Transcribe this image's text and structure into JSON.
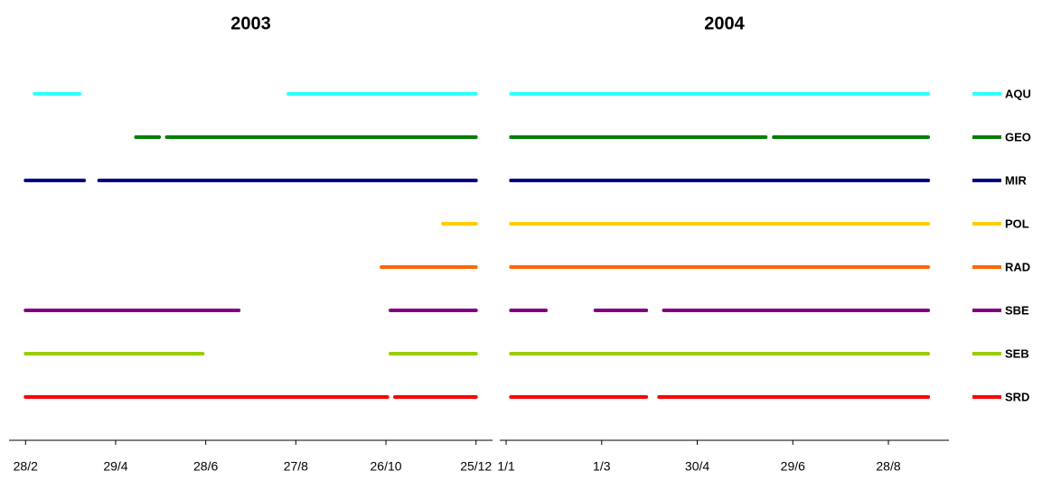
{
  "chart_data": [
    {
      "type": "timeline",
      "title": "2003",
      "xlim": [
        48,
        370
      ],
      "xticks": [
        {
          "value": 59,
          "label": "28/2"
        },
        {
          "value": 119,
          "label": "29/4"
        },
        {
          "value": 179,
          "label": "28/6"
        },
        {
          "value": 239,
          "label": "27/8"
        },
        {
          "value": 299,
          "label": "26/10"
        },
        {
          "value": 359,
          "label": "25/12"
        }
      ],
      "series": [
        {
          "color": "#33ffff",
          "segments": [
            [
              65,
              95
            ],
            [
              234,
              359
            ]
          ]
        },
        {
          "color": "#008000",
          "segments": [
            [
              132.5,
              148
            ],
            [
              153,
              359
            ]
          ]
        },
        {
          "color": "#000080",
          "segments": [
            [
              59,
              98
            ],
            [
              108,
              359
            ]
          ]
        },
        {
          "color": "#ffcc00",
          "segments": [
            [
              337,
              359
            ]
          ]
        },
        {
          "color": "#ff6600",
          "segments": [
            [
              296,
              359
            ]
          ]
        },
        {
          "color": "#800080",
          "segments": [
            [
              59,
              201
            ],
            [
              302,
              359
            ]
          ]
        },
        {
          "color": "#99cc00",
          "segments": [
            [
              59,
              177
            ],
            [
              302,
              359
            ]
          ]
        },
        {
          "color": "#ff0000",
          "segments": [
            [
              59,
              300
            ],
            [
              305,
              359
            ]
          ]
        }
      ]
    },
    {
      "type": "timeline",
      "title": "2004",
      "xlim": [
        -3,
        279
      ],
      "xticks": [
        {
          "value": 1,
          "label": "1/1"
        },
        {
          "value": 61,
          "label": "1/3"
        },
        {
          "value": 121,
          "label": "30/4"
        },
        {
          "value": 181,
          "label": "29/6"
        },
        {
          "value": 241,
          "label": "28/8"
        }
      ],
      "series": [
        {
          "name": "AQU",
          "color": "#33ffff",
          "segments": [
            [
              4,
              266
            ]
          ]
        },
        {
          "name": "GEO",
          "color": "#008000",
          "segments": [
            [
              4,
              164
            ],
            [
              169,
              266
            ]
          ]
        },
        {
          "name": "MIR",
          "color": "#000080",
          "segments": [
            [
              4,
              266
            ]
          ]
        },
        {
          "name": "POL",
          "color": "#ffcc00",
          "segments": [
            [
              4,
              266
            ]
          ]
        },
        {
          "name": "RAD",
          "color": "#ff6600",
          "segments": [
            [
              4,
              266
            ]
          ]
        },
        {
          "name": "SBE",
          "color": "#800080",
          "segments": [
            [
              4,
              26
            ],
            [
              57,
              89
            ],
            [
              100,
              266
            ]
          ]
        },
        {
          "name": "SEB",
          "color": "#99cc00",
          "segments": [
            [
              4,
              266
            ]
          ]
        },
        {
          "name": "SRD",
          "color": "#ff0000",
          "segments": [
            [
              4,
              89
            ],
            [
              97,
              266
            ]
          ]
        }
      ]
    }
  ]
}
